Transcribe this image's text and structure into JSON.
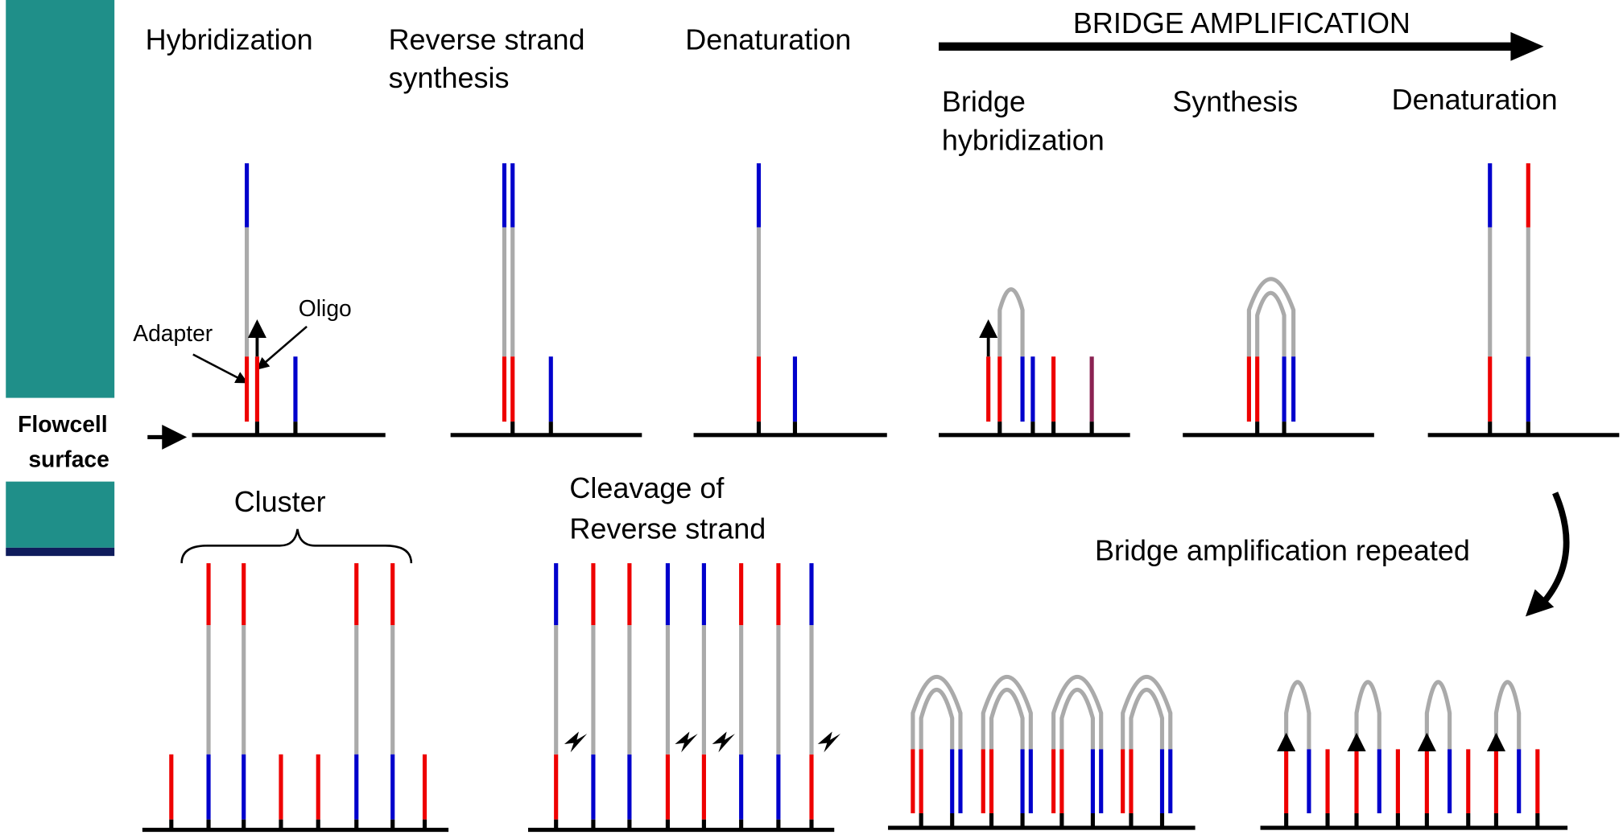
{
  "steps": {
    "hybridization": "Hybridization",
    "reverse_synthesis": [
      "Reverse strand",
      "synthesis"
    ],
    "denaturation": "Denaturation",
    "bridge_amplification": "BRIDGE AMPLIFICATION",
    "bridge_hybridization": [
      "Bridge",
      "hybridization"
    ],
    "synthesis": "Synthesis",
    "denaturation_2": "Denaturation",
    "cluster": "Cluster",
    "cleavage": [
      "Cleavage of",
      "Reverse strand"
    ],
    "repeated": "Bridge amplification repeated"
  },
  "labels": {
    "adapter": "Adapter",
    "oligo": "Oligo",
    "flowcell": [
      "Flowcell",
      "surface"
    ]
  }
}
